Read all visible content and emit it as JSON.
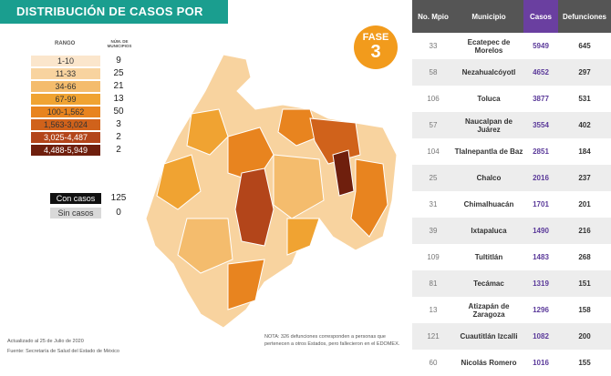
{
  "header": {
    "title": "DISTRIBUCIÓN DE CASOS POR MUNICIPIO"
  },
  "badge": {
    "label": "FASE",
    "number": "3"
  },
  "legend": {
    "range_header": "RANGO",
    "count_header": "NÚM. DE MUNICIPIOS",
    "rows": [
      {
        "range": "1-10",
        "count": 9,
        "color": "#fbe6cc"
      },
      {
        "range": "11-33",
        "count": 25,
        "color": "#f8d39f"
      },
      {
        "range": "34-66",
        "count": 21,
        "color": "#f4bc6d"
      },
      {
        "range": "67-99",
        "count": 13,
        "color": "#f0a332"
      },
      {
        "range": "100-1,562",
        "count": 50,
        "color": "#e8841f"
      },
      {
        "range": "1,563-3,024",
        "count": 3,
        "color": "#d0621b"
      },
      {
        "range": "3,025-4,487",
        "count": 2,
        "color": "#b3451a"
      },
      {
        "range": "4,488-5,949",
        "count": 2,
        "color": "#6f1f0d"
      }
    ]
  },
  "cases": [
    {
      "label": "Con casos",
      "count": 125,
      "color": "#111111"
    },
    {
      "label": "Sin casos",
      "count": 0,
      "color": "#d9d9d9"
    }
  ],
  "footer": {
    "updated": "Actualizado al 25 de Julio de 2020",
    "source": "Fuente: Secretaría de Salud del Estado de México",
    "note": "NOTA: 326 defunciones corresponden a personas que pertenecen a otros Estados, pero fallecieron en el EDOMEX."
  },
  "table": {
    "headers": [
      "No. Mpio",
      "Municipio",
      "Casos",
      "Defunciones"
    ],
    "rows": [
      [
        33,
        "Ecatepec de Morelos",
        5949,
        645
      ],
      [
        58,
        "Nezahualcóyotl",
        4652,
        297
      ],
      [
        106,
        "Toluca",
        3877,
        531
      ],
      [
        57,
        "Naucalpan de Juárez",
        3554,
        402
      ],
      [
        104,
        "Tlalnepantla de Baz",
        2851,
        184
      ],
      [
        25,
        "Chalco",
        2016,
        237
      ],
      [
        31,
        "Chimalhuacán",
        1701,
        201
      ],
      [
        39,
        "Ixtapaluca",
        1490,
        216
      ],
      [
        109,
        "Tultitlán",
        1483,
        268
      ],
      [
        81,
        "Tecámac",
        1319,
        151
      ],
      [
        13,
        "Atizapán de Zaragoza",
        1296,
        158
      ],
      [
        121,
        "Cuautitlán Izcalli",
        1082,
        200
      ],
      [
        60,
        "Nicolás Romero",
        1016,
        155
      ]
    ]
  }
}
